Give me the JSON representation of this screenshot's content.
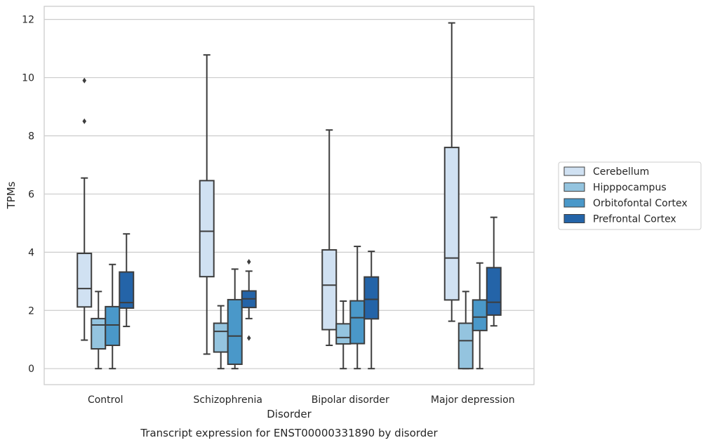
{
  "chart_data": {
    "type": "box",
    "caption": "Transcript expression for ENST00000331890 by disorder",
    "xlabel": "Disorder",
    "ylabel": "TPMs",
    "ylim": [
      -0.55,
      12.45
    ],
    "yticks": [
      0,
      2,
      4,
      6,
      8,
      10,
      12
    ],
    "grid": "horizontal",
    "legend_position": "right",
    "categories": [
      "Control",
      "Schizophrenia",
      "Bipolar disorder",
      "Major depression"
    ],
    "series": [
      {
        "name": "Cerebellum",
        "color": "#d0e1f2",
        "boxes": [
          {
            "min": 0.98,
            "q1": 2.12,
            "median": 2.75,
            "q3": 3.96,
            "max": 6.55,
            "outliers": [
              8.5,
              9.9
            ]
          },
          {
            "min": 0.5,
            "q1": 3.16,
            "median": 4.72,
            "q3": 6.46,
            "max": 10.78,
            "outliers": []
          },
          {
            "min": 0.8,
            "q1": 1.34,
            "median": 2.87,
            "q3": 4.08,
            "max": 8.2,
            "outliers": []
          },
          {
            "min": 1.63,
            "q1": 2.36,
            "median": 3.8,
            "q3": 7.6,
            "max": 11.88,
            "outliers": []
          }
        ]
      },
      {
        "name": "Hipppocampus",
        "color": "#94c4df",
        "boxes": [
          {
            "min": 0.0,
            "q1": 0.68,
            "median": 1.5,
            "q3": 1.72,
            "max": 2.65,
            "outliers": []
          },
          {
            "min": 0.0,
            "q1": 0.57,
            "median": 1.28,
            "q3": 1.56,
            "max": 2.16,
            "outliers": []
          },
          {
            "min": 0.0,
            "q1": 0.85,
            "median": 1.07,
            "q3": 1.54,
            "max": 2.32,
            "outliers": []
          },
          {
            "min": 0.0,
            "q1": 0.0,
            "median": 0.96,
            "q3": 1.56,
            "max": 2.65,
            "outliers": []
          }
        ]
      },
      {
        "name": "Orbitofontal Cortex",
        "color": "#4a98c9",
        "boxes": [
          {
            "min": 0.0,
            "q1": 0.8,
            "median": 1.5,
            "q3": 2.13,
            "max": 3.58,
            "outliers": []
          },
          {
            "min": 0.0,
            "q1": 0.15,
            "median": 1.12,
            "q3": 2.37,
            "max": 3.42,
            "outliers": []
          },
          {
            "min": 0.0,
            "q1": 0.86,
            "median": 1.75,
            "q3": 2.33,
            "max": 4.2,
            "outliers": []
          },
          {
            "min": 0.0,
            "q1": 1.31,
            "median": 1.77,
            "q3": 2.36,
            "max": 3.63,
            "outliers": []
          }
        ]
      },
      {
        "name": "Prefrontal Cortex",
        "color": "#2464a8",
        "boxes": [
          {
            "min": 1.45,
            "q1": 2.08,
            "median": 2.27,
            "q3": 3.32,
            "max": 4.63,
            "outliers": []
          },
          {
            "min": 1.72,
            "q1": 2.1,
            "median": 2.4,
            "q3": 2.67,
            "max": 3.35,
            "outliers": [
              1.05,
              3.67
            ]
          },
          {
            "min": 0.0,
            "q1": 1.71,
            "median": 2.38,
            "q3": 3.15,
            "max": 4.03,
            "outliers": []
          },
          {
            "min": 1.47,
            "q1": 1.84,
            "median": 2.28,
            "q3": 3.47,
            "max": 5.2,
            "outliers": []
          }
        ]
      }
    ]
  }
}
